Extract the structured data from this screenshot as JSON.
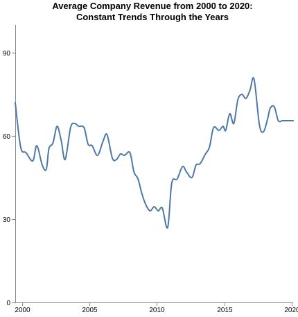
{
  "chart_data": {
    "type": "line",
    "title": "Average Company Revenue from 2000 to 2020:",
    "subtitle": "Constant Trends Through the Years",
    "xlabel": "",
    "ylabel": "",
    "xlim": [
      1999.5,
      2020.1
    ],
    "ylim": [
      0,
      100
    ],
    "x_ticks": [
      2000,
      2005,
      2010,
      2015,
      2020
    ],
    "y_ticks": [
      0,
      30,
      60,
      90
    ],
    "grid": false,
    "line_color": "#4c78a8",
    "series": [
      {
        "x": [
          1999.5,
          1999.9,
          2000.3,
          2000.8,
          2001.1,
          2001.5,
          2001.8,
          2002.0,
          2002.3,
          2002.6,
          2002.9,
          2003.2,
          2003.6,
          2003.9,
          2004.2,
          2004.6,
          2004.9,
          2005.2,
          2005.6,
          2006.0,
          2006.3,
          2006.7,
          2007.0,
          2007.3,
          2007.6,
          2008.0,
          2008.3,
          2008.6,
          2008.9,
          2009.2,
          2009.5,
          2009.8,
          2010.1,
          2010.4,
          2010.8,
          2011.1,
          2011.5,
          2011.9,
          2012.2,
          2012.6,
          2012.9,
          2013.2,
          2013.6,
          2013.9,
          2014.2,
          2014.6,
          2014.9,
          2015.1,
          2015.4,
          2015.7,
          2016.0,
          2016.3,
          2016.6,
          2016.9,
          2017.2,
          2017.6,
          2017.9,
          2018.2,
          2018.4,
          2018.7,
          2019.0,
          2019.3,
          2019.6,
          2019.9,
          2020.1
        ],
        "values": [
          72.0,
          56.0,
          54.0,
          51.0,
          56.5,
          49.5,
          48.0,
          55.5,
          57.5,
          63.5,
          58.5,
          51.5,
          63.0,
          64.5,
          63.5,
          63.0,
          57.0,
          56.5,
          53.0,
          58.0,
          60.5,
          52.0,
          51.5,
          53.5,
          53.0,
          54.0,
          47.0,
          44.5,
          39.0,
          35.0,
          33.0,
          34.5,
          33.0,
          34.0,
          27.0,
          43.0,
          44.5,
          49.0,
          47.0,
          45.0,
          49.5,
          50.0,
          53.5,
          56.0,
          63.0,
          62.0,
          63.5,
          62.0,
          68.0,
          64.5,
          73.0,
          75.0,
          73.5,
          76.5,
          80.5,
          64.0,
          61.5,
          66.0,
          70.0,
          70.5,
          65.5,
          65.5,
          65.5,
          65.5,
          65.5
        ]
      }
    ]
  }
}
